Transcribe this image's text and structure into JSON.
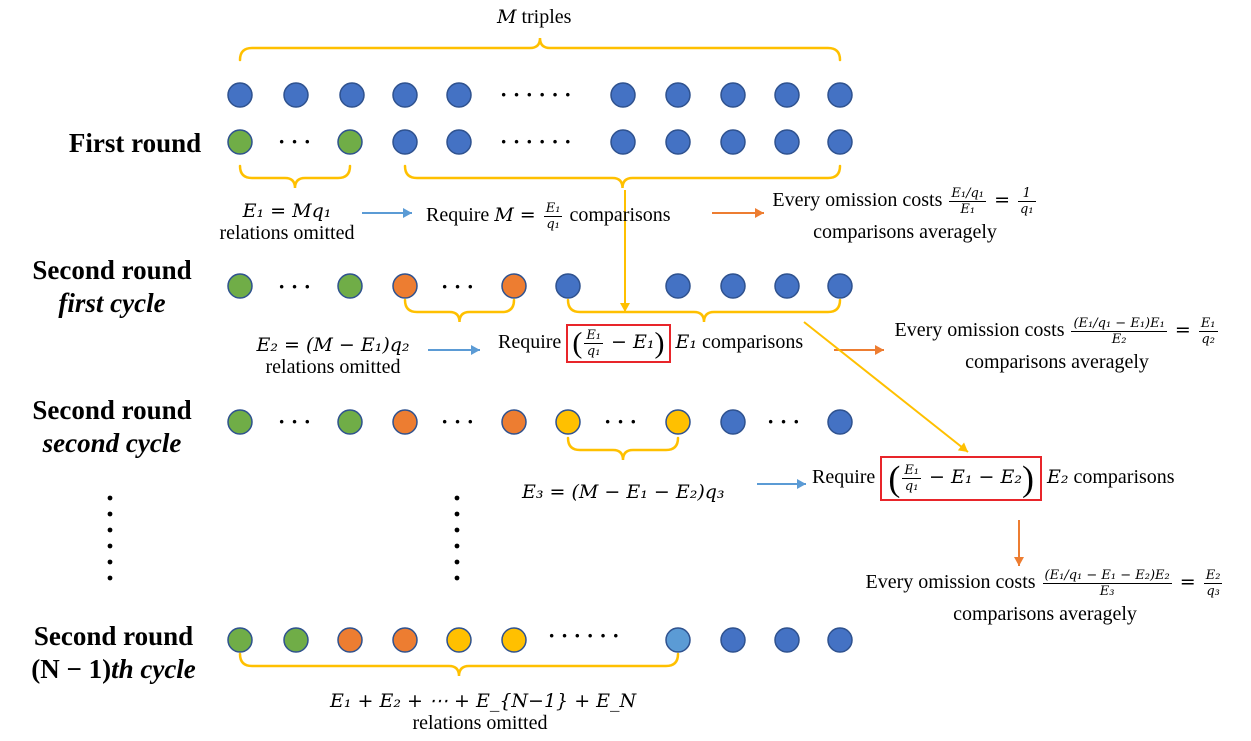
{
  "colors": {
    "blue": "#4472c4",
    "green": "#70ad47",
    "orange": "#ed7d31",
    "yellow": "#ffc000",
    "light_blue": "#5b9bd5",
    "brace": "#ffc000",
    "blue_arrow": "#5b9bd5",
    "orange_arrow": "#ed7d31",
    "red_box": "#e8252a"
  },
  "header": {
    "m_var": "M",
    "triples": " triples"
  },
  "rows": {
    "first_round": "First round",
    "second_round": "Second round",
    "first_cycle": "first cycle",
    "second_cycle": "second cycle",
    "nth_paren": "(N − 1)",
    "nth_cycle": "th cycle"
  },
  "annotations": {
    "e1_eq": "E₁ = Mq₁",
    "e2_eq": "E₂ = (M − E₁)q₂",
    "e3_eq": "E₃ = (M − E₁ − E₂)q₃",
    "relations_omitted": "relations omitted",
    "sum_eq": "E₁ + E₂ + ⋯ + E_{N−1} + E_N",
    "require": "Require ",
    "comparisons": " comparisons",
    "every_omission": "Every omission costs ",
    "comparisons_averagely": "comparisons averagely",
    "m_eq": "M = ",
    "e1_term": "E₁",
    "e2_term": "E₂",
    "minus_e1": " − E₁",
    "minus_e1_e2": " − E₁ − E₂",
    "equals": " = ",
    "frac_e1_q1": {
      "num": "E₁",
      "den": "q₁"
    },
    "frac_1_q1": {
      "num": "1",
      "den": "q₁"
    },
    "frac_e1q1_e1": {
      "num": "E₁/q₁",
      "den": "E₁"
    },
    "frac_e1_q2": {
      "num": "E₁",
      "den": "q₂"
    },
    "frac_e2_q3": {
      "num": "E₂",
      "den": "q₃"
    },
    "frac_c2": {
      "num": "(E₁/q₁ − E₁)E₁",
      "den": "E₂"
    },
    "frac_c3": {
      "num": "(E₁/q₁ − E₁ − E₂)E₂",
      "den": "E₃"
    },
    "dots": "· · ·",
    "dots6": "· · · · · ·"
  }
}
